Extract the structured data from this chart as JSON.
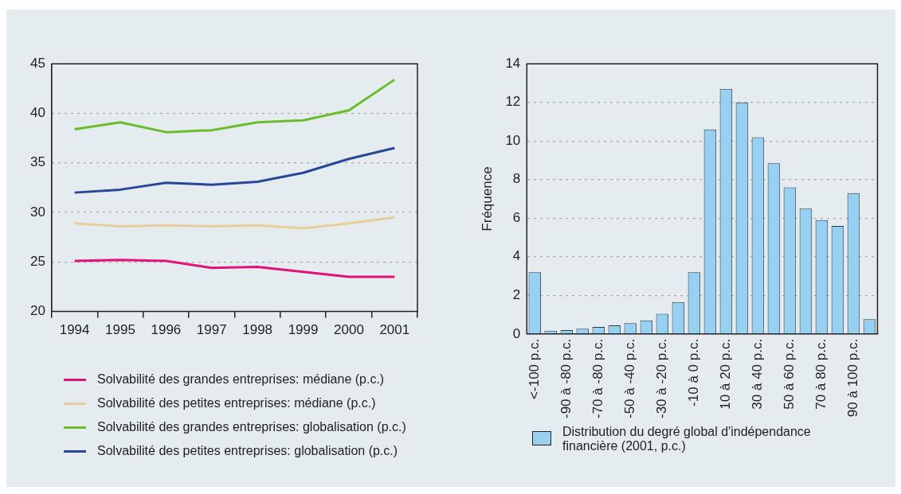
{
  "chart_data": [
    {
      "type": "line",
      "categories": [
        "1994",
        "1995",
        "1996",
        "1997",
        "1998",
        "1999",
        "2000",
        "2001"
      ],
      "series": [
        {
          "name": "Solvabilité des grandes entreprises: médiane (p.c.)",
          "color": "#e2127a",
          "values": [
            25.1,
            25.2,
            25.1,
            24.4,
            24.5,
            24.0,
            23.5,
            23.5
          ]
        },
        {
          "name": "Solvabilité des petites entreprises: médiane (p.c.)",
          "color": "#e6cf9c",
          "values": [
            28.9,
            28.6,
            28.7,
            28.6,
            28.7,
            28.4,
            28.9,
            29.5
          ]
        },
        {
          "name": "Solvabilité des grandes entreprises: globalisation (p.c.)",
          "color": "#6cbd2b",
          "values": [
            38.4,
            39.1,
            38.1,
            38.3,
            39.1,
            39.3,
            40.3,
            43.4
          ]
        },
        {
          "name": "Solvabilité des petites entreprises: globalisation (p.c.)",
          "color": "#28479a",
          "values": [
            32.0,
            32.3,
            33.0,
            32.8,
            33.1,
            34.0,
            35.4,
            36.5
          ]
        }
      ],
      "ylim": [
        20,
        45
      ],
      "yticks": [
        20,
        25,
        30,
        35,
        40,
        45
      ],
      "grid": "y",
      "legend": "bottom"
    },
    {
      "type": "bar",
      "ylabel": "Fréquence",
      "categories": [
        "<-100 p.c.",
        null,
        "-90 à -80 p.c.",
        null,
        "-70 à -80 p.c.",
        null,
        "-50 à -40 p.c.",
        null,
        "-30 à -20 p.c.",
        null,
        "-10 à 0 p.c.",
        null,
        "10 à 20 p.c.",
        null,
        "30 à 40 p.c.",
        null,
        "50 à 60 p.c.",
        null,
        "70 à 80 p.c.",
        null,
        "90 à 100 p.c.",
        null
      ],
      "series": [
        {
          "name": "Distribution du degré global d'indépendance financière (2001, p.c.)",
          "color": "#98d0f2",
          "values": [
            3.2,
            0.17,
            0.2,
            0.27,
            0.36,
            0.45,
            0.56,
            0.7,
            1.04,
            1.65,
            3.2,
            10.6,
            12.7,
            12.0,
            10.2,
            8.85,
            7.6,
            6.5,
            5.9,
            5.6,
            7.3,
            0.77
          ]
        }
      ],
      "ylim": [
        0,
        14
      ],
      "yticks": [
        0,
        2,
        4,
        6,
        8,
        10,
        12,
        14
      ],
      "grid": "y",
      "legend": "bottom"
    }
  ]
}
